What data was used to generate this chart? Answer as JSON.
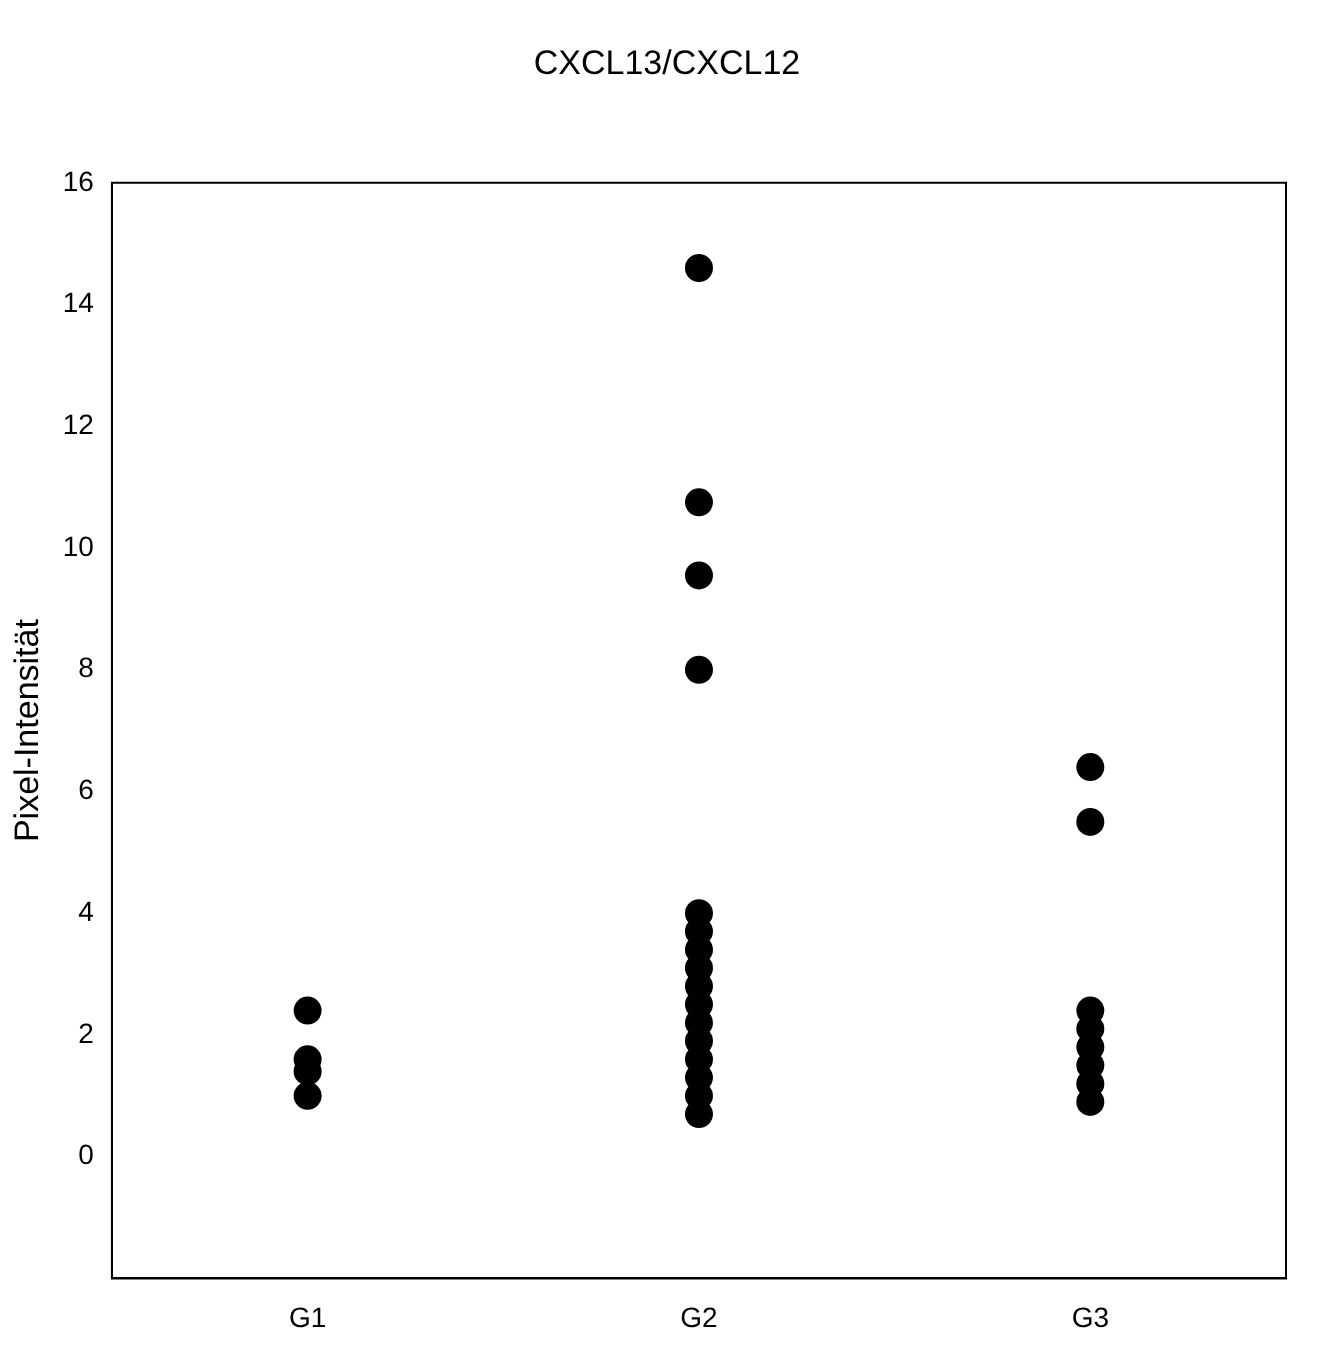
{
  "chart_data": {
    "type": "scatter",
    "title": "CXCL13/CXCL12",
    "ylabel": "Pixel-Intensität",
    "categories": [
      "G1",
      "G2",
      "G3"
    ],
    "series": [
      {
        "color": "#000000",
        "x": [
          "G1",
          "G1",
          "G1",
          "G1"
        ],
        "values": [
          2.4,
          1.6,
          1.4,
          1.0
        ]
      },
      {
        "color": "#000000",
        "x": [
          "G2",
          "G2",
          "G2",
          "G2",
          "G2",
          "G2",
          "G2",
          "G2",
          "G2",
          "G2",
          "G2",
          "G2",
          "G2",
          "G2",
          "G2",
          "G2"
        ],
        "values": [
          14.6,
          10.75,
          9.55,
          8.0,
          4.0,
          3.7,
          3.4,
          3.1,
          2.8,
          2.5,
          2.2,
          1.9,
          1.6,
          1.3,
          1.0,
          0.7
        ]
      },
      {
        "color": "#000000",
        "x": [
          "G3",
          "G3",
          "G3",
          "G3",
          "G3",
          "G3",
          "G3",
          "G3"
        ],
        "values": [
          6.4,
          5.5,
          2.4,
          2.1,
          1.8,
          1.5,
          1.2,
          0.9
        ]
      }
    ],
    "ylim": [
      -2,
      16
    ],
    "yticks": [
      0,
      2,
      4,
      6,
      8,
      10,
      12,
      14,
      16
    ],
    "grid": false,
    "legend": false,
    "marker": "circle"
  }
}
